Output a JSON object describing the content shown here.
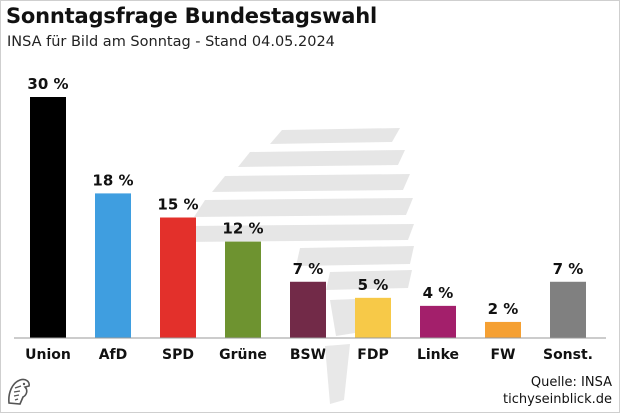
{
  "header": {
    "title": "Sonntagsfrage Bundestagswahl",
    "subtitle": "INSA für Bild am Sonntag - Stand 04.05.2024"
  },
  "footer": {
    "source_line": "Quelle: INSA",
    "site": "tichyseinblick.de",
    "logo_icon": "eagle-head-logo-icon"
  },
  "chart_data": {
    "type": "bar",
    "title": "Sonntagsfrage Bundestagswahl",
    "subtitle": "INSA für Bild am Sonntag - Stand 04.05.2024",
    "categories": [
      "Union",
      "AfD",
      "SPD",
      "Grüne",
      "BSW",
      "FDP",
      "Linke",
      "FW",
      "Sonst."
    ],
    "values": [
      30,
      18,
      15,
      12,
      7,
      5,
      4,
      2,
      7
    ],
    "labels": [
      "30 %",
      "18 %",
      "15 %",
      "12 %",
      "7 %",
      "5 %",
      "4 %",
      "2 %",
      "7 %"
    ],
    "colors": [
      "#000000",
      "#3f9ee0",
      "#e3302b",
      "#6e9330",
      "#722a48",
      "#f7c948",
      "#a31f6b",
      "#f5a033",
      "#808080"
    ],
    "ylim": [
      0,
      30
    ],
    "grid": false,
    "legend": "none",
    "background_watermark": "bundestag-eagle-seating-watermark"
  }
}
